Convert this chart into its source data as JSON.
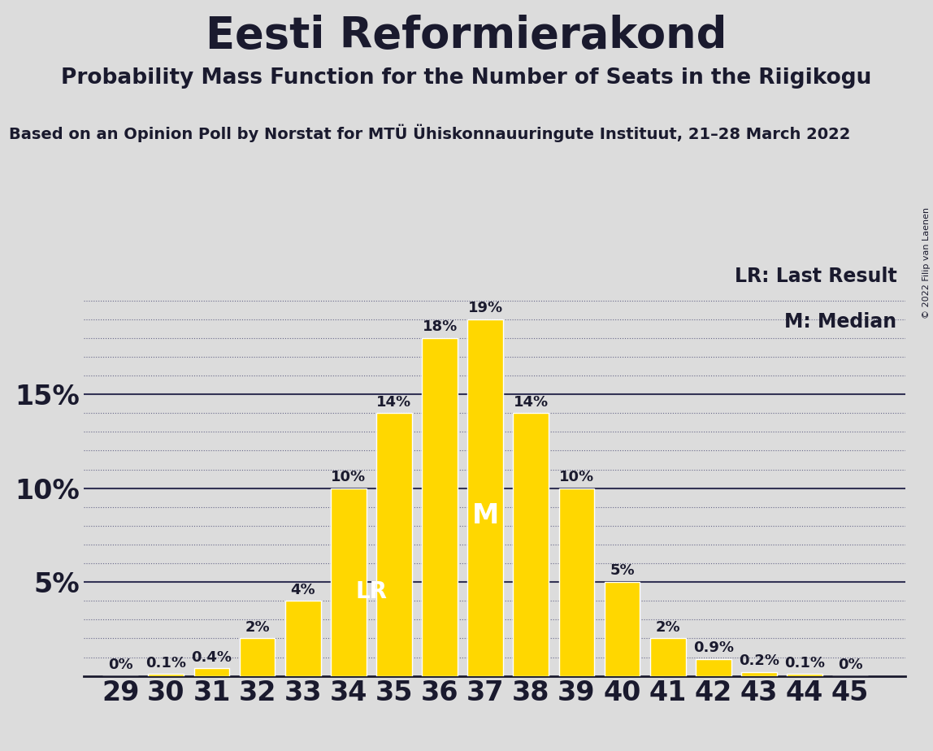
{
  "title": "Eesti Reformierakond",
  "subtitle": "Probability Mass Function for the Number of Seats in the Riigikogu",
  "source_line": "Based on an Opinion Poll by Norstat for MTÜ Ühiskonnauuringute Instituut, 21–28 March 2022",
  "copyright": "© 2022 Filip van Laenen",
  "seats": [
    29,
    30,
    31,
    32,
    33,
    34,
    35,
    36,
    37,
    38,
    39,
    40,
    41,
    42,
    43,
    44,
    45
  ],
  "probabilities": [
    0.0,
    0.1,
    0.4,
    2.0,
    4.0,
    10.0,
    14.0,
    18.0,
    19.0,
    14.0,
    10.0,
    5.0,
    2.0,
    0.9,
    0.2,
    0.1,
    0.0
  ],
  "bar_color": "#FFD700",
  "bar_edgecolor": "#FFFFFF",
  "background_color": "#DCDCDC",
  "text_color": "#1a1a2e",
  "yticks": [
    5,
    10,
    15
  ],
  "ylim": [
    0,
    22
  ],
  "xlim": [
    28.2,
    46.2
  ],
  "last_result_seat": 34,
  "median_seat": 37,
  "lr_label": "LR",
  "m_label": "M",
  "legend_lr": "LR: Last Result",
  "legend_m": "M: Median",
  "title_fontsize": 38,
  "subtitle_fontsize": 19,
  "source_fontsize": 14,
  "bar_label_fontsize": 13,
  "axis_tick_fontsize": 24,
  "legend_fontsize": 17,
  "lr_inside_fontsize": 20,
  "m_inside_fontsize": 24
}
